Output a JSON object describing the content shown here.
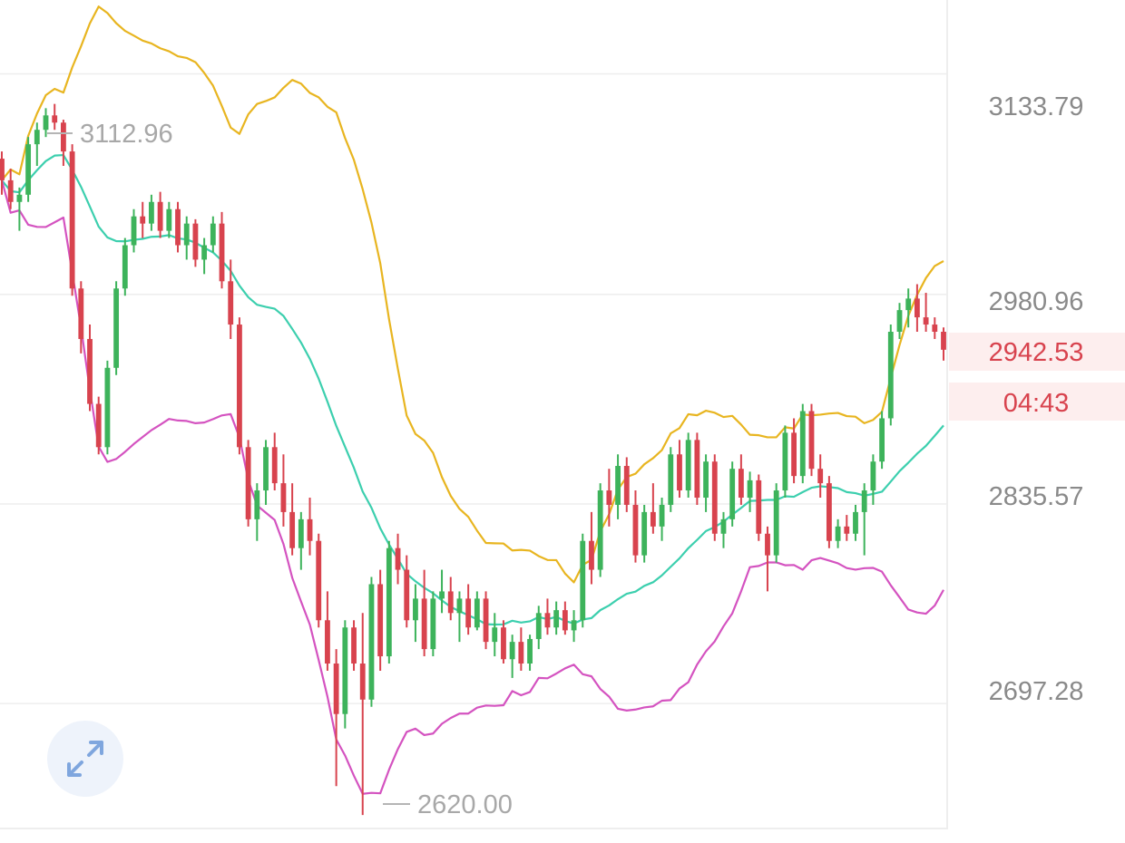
{
  "chart_data": {
    "type": "candlestick",
    "y_axis_ticks": [
      "3133.79",
      "2980.96",
      "2835.57",
      "2697.28"
    ],
    "last_price": "2942.53",
    "countdown": "04:43",
    "high_marker": "3112.96",
    "low_marker": "2620.00",
    "ylim": [
      2610,
      3185
    ],
    "colors": {
      "up": "#3db35b",
      "down": "#d8434e",
      "middle_band": "#3ccfae",
      "upper_band": "#e8b520",
      "lower_band": "#d453c0",
      "grid": "#eeeeee"
    },
    "candles": [
      {
        "o": 3075,
        "h": 3080,
        "l": 3050,
        "c": 3060
      },
      {
        "o": 3060,
        "h": 3068,
        "l": 3040,
        "c": 3045
      },
      {
        "o": 3045,
        "h": 3055,
        "l": 3025,
        "c": 3050
      },
      {
        "o": 3050,
        "h": 3090,
        "l": 3045,
        "c": 3085
      },
      {
        "o": 3085,
        "h": 3100,
        "l": 3070,
        "c": 3095
      },
      {
        "o": 3095,
        "h": 3110,
        "l": 3090,
        "c": 3105
      },
      {
        "o": 3105,
        "h": 3112.96,
        "l": 3095,
        "c": 3100
      },
      {
        "o": 3100,
        "h": 3102,
        "l": 3070,
        "c": 3080
      },
      {
        "o": 3080,
        "h": 3085,
        "l": 2980,
        "c": 2985
      },
      {
        "o": 2985,
        "h": 2990,
        "l": 2940,
        "c": 2950
      },
      {
        "o": 2950,
        "h": 2960,
        "l": 2900,
        "c": 2905
      },
      {
        "o": 2905,
        "h": 2910,
        "l": 2870,
        "c": 2875
      },
      {
        "o": 2875,
        "h": 2935,
        "l": 2870,
        "c": 2930
      },
      {
        "o": 2930,
        "h": 2990,
        "l": 2925,
        "c": 2985
      },
      {
        "o": 2985,
        "h": 3020,
        "l": 2980,
        "c": 3015
      },
      {
        "o": 3015,
        "h": 3040,
        "l": 3010,
        "c": 3035
      },
      {
        "o": 3035,
        "h": 3045,
        "l": 3020,
        "c": 3030
      },
      {
        "o": 3030,
        "h": 3050,
        "l": 3025,
        "c": 3045
      },
      {
        "o": 3045,
        "h": 3052,
        "l": 3020,
        "c": 3025
      },
      {
        "o": 3025,
        "h": 3045,
        "l": 3020,
        "c": 3040
      },
      {
        "o": 3040,
        "h": 3045,
        "l": 3010,
        "c": 3015
      },
      {
        "o": 3015,
        "h": 3035,
        "l": 3005,
        "c": 3030
      },
      {
        "o": 3030,
        "h": 3033,
        "l": 3000,
        "c": 3005
      },
      {
        "o": 3005,
        "h": 3020,
        "l": 2995,
        "c": 3015
      },
      {
        "o": 3015,
        "h": 3035,
        "l": 3010,
        "c": 3030
      },
      {
        "o": 3030,
        "h": 3038,
        "l": 2985,
        "c": 2990
      },
      {
        "o": 2990,
        "h": 3005,
        "l": 2950,
        "c": 2960
      },
      {
        "o": 2960,
        "h": 2965,
        "l": 2870,
        "c": 2875
      },
      {
        "o": 2875,
        "h": 2880,
        "l": 2820,
        "c": 2825
      },
      {
        "o": 2825,
        "h": 2850,
        "l": 2810,
        "c": 2845
      },
      {
        "o": 2845,
        "h": 2880,
        "l": 2835,
        "c": 2875
      },
      {
        "o": 2875,
        "h": 2885,
        "l": 2845,
        "c": 2850
      },
      {
        "o": 2850,
        "h": 2870,
        "l": 2820,
        "c": 2830
      },
      {
        "o": 2830,
        "h": 2850,
        "l": 2800,
        "c": 2805
      },
      {
        "o": 2805,
        "h": 2830,
        "l": 2790,
        "c": 2825
      },
      {
        "o": 2825,
        "h": 2840,
        "l": 2800,
        "c": 2810
      },
      {
        "o": 2810,
        "h": 2815,
        "l": 2750,
        "c": 2755
      },
      {
        "o": 2755,
        "h": 2775,
        "l": 2720,
        "c": 2725
      },
      {
        "o": 2725,
        "h": 2735,
        "l": 2640,
        "c": 2690
      },
      {
        "o": 2690,
        "h": 2755,
        "l": 2680,
        "c": 2750
      },
      {
        "o": 2750,
        "h": 2755,
        "l": 2720,
        "c": 2725
      },
      {
        "o": 2725,
        "h": 2760,
        "l": 2620,
        "c": 2700
      },
      {
        "o": 2700,
        "h": 2785,
        "l": 2695,
        "c": 2780
      },
      {
        "o": 2780,
        "h": 2790,
        "l": 2720,
        "c": 2730
      },
      {
        "o": 2730,
        "h": 2810,
        "l": 2725,
        "c": 2805
      },
      {
        "o": 2805,
        "h": 2815,
        "l": 2780,
        "c": 2790
      },
      {
        "o": 2790,
        "h": 2800,
        "l": 2750,
        "c": 2755
      },
      {
        "o": 2755,
        "h": 2780,
        "l": 2740,
        "c": 2770
      },
      {
        "o": 2770,
        "h": 2790,
        "l": 2730,
        "c": 2735
      },
      {
        "o": 2735,
        "h": 2775,
        "l": 2730,
        "c": 2770
      },
      {
        "o": 2770,
        "h": 2790,
        "l": 2760,
        "c": 2775
      },
      {
        "o": 2775,
        "h": 2785,
        "l": 2755,
        "c": 2760
      },
      {
        "o": 2760,
        "h": 2775,
        "l": 2740,
        "c": 2770
      },
      {
        "o": 2770,
        "h": 2780,
        "l": 2745,
        "c": 2750
      },
      {
        "o": 2750,
        "h": 2775,
        "l": 2748,
        "c": 2770
      },
      {
        "o": 2770,
        "h": 2775,
        "l": 2735,
        "c": 2740
      },
      {
        "o": 2740,
        "h": 2760,
        "l": 2730,
        "c": 2750
      },
      {
        "o": 2750,
        "h": 2755,
        "l": 2725,
        "c": 2728
      },
      {
        "o": 2728,
        "h": 2745,
        "l": 2715,
        "c": 2740
      },
      {
        "o": 2740,
        "h": 2750,
        "l": 2720,
        "c": 2725
      },
      {
        "o": 2725,
        "h": 2745,
        "l": 2720,
        "c": 2742
      },
      {
        "o": 2742,
        "h": 2765,
        "l": 2735,
        "c": 2760
      },
      {
        "o": 2760,
        "h": 2770,
        "l": 2745,
        "c": 2750
      },
      {
        "o": 2750,
        "h": 2768,
        "l": 2745,
        "c": 2762
      },
      {
        "o": 2762,
        "h": 2768,
        "l": 2745,
        "c": 2748
      },
      {
        "o": 2748,
        "h": 2762,
        "l": 2740,
        "c": 2755
      },
      {
        "o": 2755,
        "h": 2815,
        "l": 2750,
        "c": 2810
      },
      {
        "o": 2810,
        "h": 2830,
        "l": 2780,
        "c": 2790
      },
      {
        "o": 2790,
        "h": 2850,
        "l": 2785,
        "c": 2845
      },
      {
        "o": 2845,
        "h": 2860,
        "l": 2820,
        "c": 2835
      },
      {
        "o": 2835,
        "h": 2870,
        "l": 2825,
        "c": 2862
      },
      {
        "o": 2862,
        "h": 2868,
        "l": 2830,
        "c": 2835
      },
      {
        "o": 2835,
        "h": 2845,
        "l": 2795,
        "c": 2800
      },
      {
        "o": 2800,
        "h": 2835,
        "l": 2795,
        "c": 2830
      },
      {
        "o": 2830,
        "h": 2850,
        "l": 2815,
        "c": 2820
      },
      {
        "o": 2820,
        "h": 2840,
        "l": 2810,
        "c": 2835
      },
      {
        "o": 2835,
        "h": 2875,
        "l": 2830,
        "c": 2870
      },
      {
        "o": 2870,
        "h": 2880,
        "l": 2840,
        "c": 2845
      },
      {
        "o": 2845,
        "h": 2885,
        "l": 2840,
        "c": 2880
      },
      {
        "o": 2880,
        "h": 2885,
        "l": 2835,
        "c": 2840
      },
      {
        "o": 2840,
        "h": 2870,
        "l": 2830,
        "c": 2865
      },
      {
        "o": 2865,
        "h": 2870,
        "l": 2810,
        "c": 2815
      },
      {
        "o": 2815,
        "h": 2830,
        "l": 2805,
        "c": 2825
      },
      {
        "o": 2825,
        "h": 2865,
        "l": 2820,
        "c": 2860
      },
      {
        "o": 2860,
        "h": 2870,
        "l": 2835,
        "c": 2840
      },
      {
        "o": 2840,
        "h": 2858,
        "l": 2830,
        "c": 2852
      },
      {
        "o": 2852,
        "h": 2856,
        "l": 2810,
        "c": 2815
      },
      {
        "o": 2815,
        "h": 2820,
        "l": 2775,
        "c": 2800
      },
      {
        "o": 2800,
        "h": 2850,
        "l": 2795,
        "c": 2845
      },
      {
        "o": 2845,
        "h": 2890,
        "l": 2840,
        "c": 2885
      },
      {
        "o": 2885,
        "h": 2895,
        "l": 2850,
        "c": 2855
      },
      {
        "o": 2855,
        "h": 2905,
        "l": 2850,
        "c": 2900
      },
      {
        "o": 2900,
        "h": 2905,
        "l": 2855,
        "c": 2860
      },
      {
        "o": 2860,
        "h": 2870,
        "l": 2840,
        "c": 2850
      },
      {
        "o": 2850,
        "h": 2855,
        "l": 2805,
        "c": 2810
      },
      {
        "o": 2810,
        "h": 2825,
        "l": 2805,
        "c": 2820
      },
      {
        "o": 2820,
        "h": 2828,
        "l": 2810,
        "c": 2815
      },
      {
        "o": 2815,
        "h": 2835,
        "l": 2810,
        "c": 2830
      },
      {
        "o": 2830,
        "h": 2850,
        "l": 2800,
        "c": 2845
      },
      {
        "o": 2845,
        "h": 2870,
        "l": 2835,
        "c": 2865
      },
      {
        "o": 2865,
        "h": 2900,
        "l": 2860,
        "c": 2895
      },
      {
        "o": 2895,
        "h": 2960,
        "l": 2890,
        "c": 2955
      },
      {
        "o": 2955,
        "h": 2975,
        "l": 2950,
        "c": 2970
      },
      {
        "o": 2970,
        "h": 2985,
        "l": 2958,
        "c": 2978
      },
      {
        "o": 2978,
        "h": 2988,
        "l": 2955,
        "c": 2965
      },
      {
        "o": 2965,
        "h": 2982,
        "l": 2955,
        "c": 2960
      },
      {
        "o": 2960,
        "h": 2965,
        "l": 2950,
        "c": 2955
      },
      {
        "o": 2955,
        "h": 2958,
        "l": 2935,
        "c": 2942.53
      }
    ]
  }
}
